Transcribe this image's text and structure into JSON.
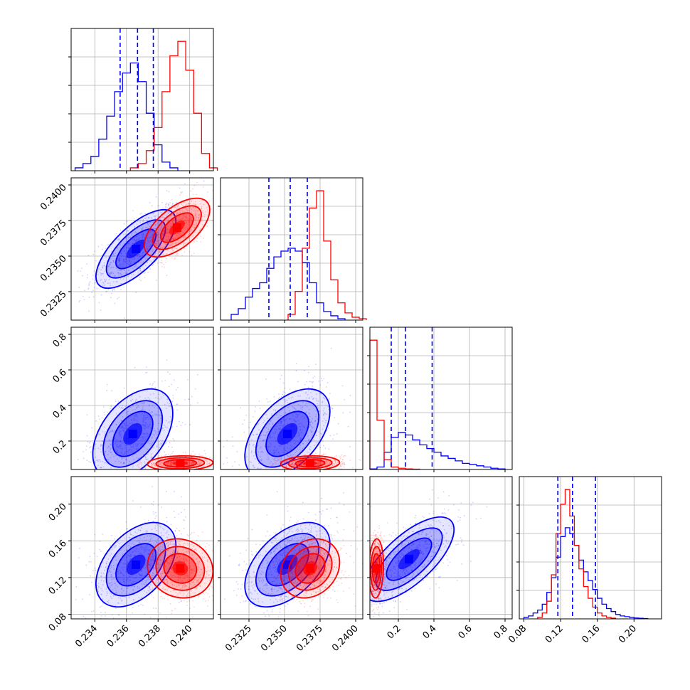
{
  "chart_data": {
    "type": "corner",
    "series": [
      {
        "name": "",
        "color": "#0000ff"
      },
      {
        "name": "",
        "color": "#ff0000"
      }
    ],
    "params": [
      {
        "range": [
          0.2325,
          0.2415
        ],
        "ticks": [
          0.234,
          0.236,
          0.238,
          0.24
        ],
        "tick_labels": [
          "0.234",
          "0.236",
          "0.238",
          "0.240"
        ]
      },
      {
        "range": [
          0.2305,
          0.2405
        ],
        "ticks": [
          0.2325,
          0.235,
          0.2375,
          0.24
        ],
        "tick_labels": [
          "0.2325",
          "0.2350",
          "0.2375",
          "0.2400"
        ]
      },
      {
        "range": [
          0.04,
          0.84
        ],
        "ticks": [
          0.2,
          0.4,
          0.6,
          0.8
        ],
        "tick_labels": [
          "0.2",
          "0.4",
          "0.6",
          "0.8"
        ]
      },
      {
        "range": [
          0.075,
          0.23
        ],
        "ticks": [
          0.08,
          0.12,
          0.16,
          0.2
        ],
        "tick_labels": [
          "0.08",
          "0.12",
          "0.16",
          "0.20"
        ]
      }
    ],
    "marginals": [
      {
        "blue": {
          "centers": [
            0.233,
            0.2335,
            0.234,
            0.2345,
            0.235,
            0.2355,
            0.236,
            0.2365,
            0.237,
            0.2375,
            0.238,
            0.2385,
            0.239
          ],
          "heights": [
            2,
            5,
            10,
            22,
            38,
            55,
            68,
            75,
            62,
            40,
            18,
            6,
            2
          ]
        },
        "red": {
          "centers": [
            0.2365,
            0.237,
            0.2375,
            0.238,
            0.2385,
            0.239,
            0.2395,
            0.24,
            0.2405,
            0.241,
            0.2415
          ],
          "heights": [
            2,
            5,
            14,
            30,
            55,
            80,
            90,
            70,
            40,
            12,
            2
          ]
        },
        "quantiles": [
          0.2356,
          0.2367,
          0.2377
        ]
      },
      {
        "blue": {
          "centers": [
            0.2315,
            0.232,
            0.2325,
            0.233,
            0.2335,
            0.234,
            0.2345,
            0.235,
            0.2355,
            0.236,
            0.2365,
            0.237,
            0.2375,
            0.238,
            0.2385,
            0.239
          ],
          "heights": [
            4,
            8,
            16,
            22,
            26,
            36,
            44,
            48,
            50,
            48,
            40,
            26,
            12,
            6,
            3,
            1
          ]
        },
        "red": {
          "centers": [
            0.2355,
            0.236,
            0.2365,
            0.237,
            0.2375,
            0.238,
            0.2385,
            0.239,
            0.2395,
            0.24,
            0.2405
          ],
          "heights": [
            4,
            20,
            50,
            78,
            90,
            55,
            28,
            12,
            5,
            2,
            1
          ]
        },
        "quantiles": [
          0.2339,
          0.2354,
          0.2366
        ]
      },
      {
        "blue": {
          "centers": [
            0.06,
            0.1,
            0.14,
            0.18,
            0.22,
            0.26,
            0.3,
            0.34,
            0.38,
            0.42,
            0.46,
            0.5,
            0.54,
            0.58,
            0.62,
            0.66,
            0.7,
            0.74,
            0.78
          ],
          "heights": [
            0.5,
            2,
            14,
            26,
            30,
            28,
            24,
            20,
            17,
            14,
            11,
            9,
            7,
            5,
            4,
            3,
            2,
            1,
            0.5
          ]
        },
        "red": {
          "centers": [
            0.06,
            0.1,
            0.14,
            0.18,
            0.22,
            0.26,
            0.3
          ],
          "heights": [
            105,
            40,
            8,
            2,
            1,
            0.5,
            0.3
          ]
        },
        "quantiles": [
          0.16,
          0.24,
          0.39
        ]
      },
      {
        "blue": {
          "centers": [
            0.0825,
            0.0875,
            0.0925,
            0.0975,
            0.1025,
            0.1075,
            0.1125,
            0.1175,
            0.1225,
            0.1275,
            0.1325,
            0.1375,
            0.1425,
            0.1475,
            0.1525,
            0.1575,
            0.1625,
            0.1675,
            0.1725,
            0.1775,
            0.1825,
            0.1875,
            0.1925,
            0.1975,
            0.2025,
            0.2075,
            0.2125
          ],
          "heights": [
            1,
            2,
            4,
            6,
            10,
            18,
            28,
            42,
            56,
            62,
            58,
            50,
            40,
            32,
            26,
            20,
            14,
            10,
            7,
            5,
            3,
            2,
            1.5,
            1,
            0.6,
            0.4,
            0.2
          ]
        },
        "red": {
          "centers": [
            0.0975,
            0.1025,
            0.1075,
            0.1125,
            0.1175,
            0.1225,
            0.1275,
            0.1325,
            0.1375,
            0.1425,
            0.1475,
            0.1525,
            0.1575,
            0.1625,
            0.1675,
            0.1725,
            0.1775
          ],
          "heights": [
            1,
            4,
            12,
            30,
            58,
            78,
            88,
            70,
            50,
            34,
            22,
            14,
            8,
            4,
            2,
            1,
            0.5
          ]
        },
        "quantiles": [
          0.117,
          0.133,
          0.158
        ]
      }
    ],
    "joint": {
      "1_0": {
        "blue": {
          "mean": [
            0.2366,
            0.2355
          ],
          "sd": [
            0.0011,
            0.0012
          ],
          "rho": 0.7
        },
        "red": {
          "mean": [
            0.2392,
            0.237
          ],
          "sd": [
            0.0009,
            0.0009
          ],
          "rho": 0.6
        }
      },
      "2_0": {
        "blue": {
          "mean": [
            0.2364,
            0.24
          ],
          "sd": [
            0.0011,
            0.11
          ],
          "rho": 0.45
        },
        "red": {
          "mean": [
            0.2394,
            0.075
          ],
          "sd": [
            0.0009,
            0.018
          ],
          "rho": 0.1
        }
      },
      "2_1": {
        "blue": {
          "mean": [
            0.2352,
            0.24
          ],
          "sd": [
            0.0013,
            0.11
          ],
          "rho": 0.5
        },
        "red": {
          "mean": [
            0.2368,
            0.075
          ],
          "sd": [
            0.0009,
            0.018
          ],
          "rho": 0.1
        }
      },
      "3_0": {
        "blue": {
          "mean": [
            0.2366,
            0.134
          ],
          "sd": [
            0.0011,
            0.02
          ],
          "rho": 0.45
        },
        "red": {
          "mean": [
            0.2394,
            0.13
          ],
          "sd": [
            0.0009,
            0.014
          ],
          "rho": -0.1
        }
      },
      "3_1": {
        "blue": {
          "mean": [
            0.2352,
            0.134
          ],
          "sd": [
            0.0013,
            0.02
          ],
          "rho": 0.5
        },
        "red": {
          "mean": [
            0.2368,
            0.13
          ],
          "sd": [
            0.0009,
            0.014
          ],
          "rho": 0.2
        }
      },
      "3_2": {
        "blue": {
          "mean": [
            0.26,
            0.14
          ],
          "sd": [
            0.11,
            0.02
          ],
          "rho": 0.7
        },
        "red": {
          "mean": [
            0.075,
            0.13
          ],
          "sd": [
            0.018,
            0.014
          ],
          "rho": 0.1
        }
      }
    },
    "grid": true,
    "quantile_style": "dashed",
    "legend": "none"
  }
}
